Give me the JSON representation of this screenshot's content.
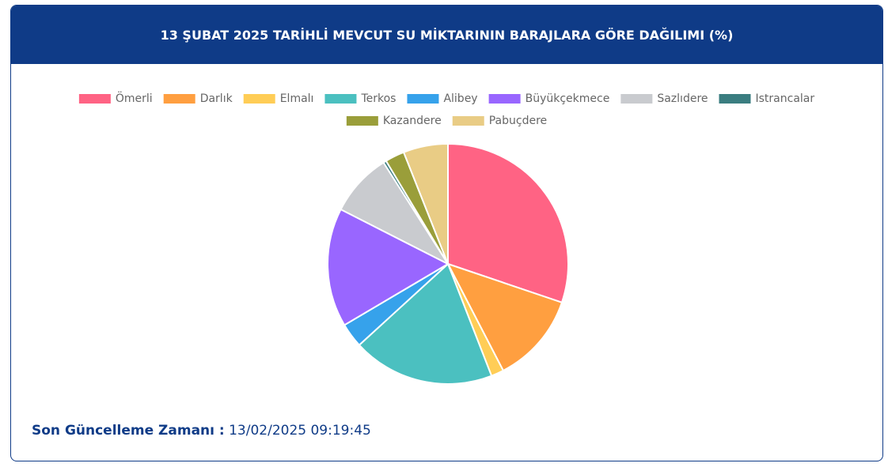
{
  "chart_data": {
    "type": "pie",
    "title": "13 ŞUBAT 2025 TARİHLİ MEVCUT SU MİKTARININ BARAJLARA GÖRE DAĞILIMI (%)",
    "categories": [
      "Ömerli",
      "Darlık",
      "Elmalı",
      "Terkos",
      "Alibey",
      "Büyükçekmece",
      "Sazlıdere",
      "Istrancalar",
      "Kazandere",
      "Pabuçdere"
    ],
    "values": [
      30.2,
      12.2,
      1.7,
      19.1,
      3.3,
      16.0,
      8.5,
      0.4,
      2.6,
      6.0
    ],
    "colors": [
      "#ff6384",
      "#ff9f40",
      "#ffcd56",
      "#4bc0c0",
      "#36a2eb",
      "#9966ff",
      "#c9cbcf",
      "#3a7d80",
      "#9a9e3a",
      "#e9cc85"
    ],
    "legend": "top"
  },
  "footer": {
    "label": "Son Güncelleme Zamanı :",
    "value": "13/02/2025 09:19:45"
  }
}
